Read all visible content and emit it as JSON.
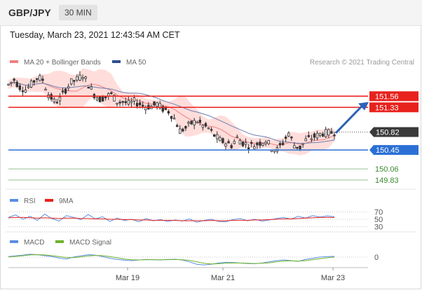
{
  "header": {
    "symbol": "GBP/JPY",
    "timeframe": "30 MIN"
  },
  "timestamp": "Tuesday, March 23, 2021 12:43:54 AM CET",
  "credit": "Research © 2021 Trading Central",
  "colors": {
    "resistance": "#e8221d",
    "support": "#2b6fd6",
    "target": "#3a8a2e",
    "price_badge": "#3a3a3a",
    "band_fill": "#ffd2cf",
    "ma20": "#f08080",
    "ma50": "#6d7fb0",
    "candle": "#333333",
    "arrow": "#2d63b5",
    "rsi": "#5b8de6",
    "rsi_ma": "#e8221d",
    "macd": "#5b8de6",
    "macd_signal": "#6fb42b"
  },
  "chart_data": [
    {
      "type": "candlestick",
      "legend": [
        {
          "name": "MA 20 + Bollinger Bands",
          "color": "#f08080"
        },
        {
          "name": "MA 50",
          "color": "#2d4f8f"
        }
      ],
      "x_ticks": [
        "Mar 19",
        "Mar 21",
        "Mar 23"
      ],
      "ylim": [
        149.7,
        152.1
      ],
      "close_path": [
        151.8,
        151.9,
        151.75,
        151.7,
        151.8,
        151.95,
        151.9,
        151.6,
        151.45,
        151.5,
        151.7,
        151.85,
        151.9,
        152.0,
        151.8,
        151.6,
        151.5,
        151.55,
        151.6,
        151.45,
        151.45,
        151.4,
        151.45,
        151.4,
        151.35,
        151.35,
        151.4,
        151.3,
        151.25,
        151.1,
        150.85,
        150.9,
        151.0,
        151.05,
        150.95,
        150.9,
        150.75,
        150.65,
        150.6,
        150.55,
        150.7,
        150.6,
        150.55,
        150.55,
        150.6,
        150.65,
        150.5,
        150.45,
        150.6,
        150.8,
        150.55,
        150.5,
        150.65,
        150.7,
        150.75,
        150.8,
        150.8,
        150.82
      ],
      "levels": {
        "current": {
          "value": 150.82,
          "label": "150.82"
        },
        "resistance": [
          {
            "value": 151.56,
            "label": "151.56"
          },
          {
            "value": 151.33,
            "label": "151.33"
          }
        ],
        "support": {
          "value": 150.45,
          "label": "150.45"
        },
        "targets": [
          {
            "value": 150.06,
            "label": "150.06"
          },
          {
            "value": 149.83,
            "label": "149.83"
          }
        ]
      }
    },
    {
      "type": "line",
      "legend": [
        {
          "name": "RSI",
          "color": "#5b8de6"
        },
        {
          "name": "9MA",
          "color": "#e8221d"
        }
      ],
      "ylim": [
        25,
        75
      ],
      "y_ticks": [
        {
          "value": 70,
          "label": "70"
        },
        {
          "value": 50,
          "label": "50"
        },
        {
          "value": 30,
          "label": "30"
        }
      ],
      "series": [
        {
          "name": "RSI",
          "values": [
            55,
            62,
            50,
            58,
            47,
            64,
            52,
            45,
            60,
            55,
            49,
            63,
            51,
            57,
            44,
            53,
            47,
            50,
            43,
            52,
            46,
            49,
            44,
            48,
            45,
            51,
            42,
            47,
            50,
            44,
            43,
            49,
            52,
            46,
            50,
            45,
            48,
            52,
            55,
            50,
            58,
            53,
            60,
            56,
            59,
            57
          ]
        },
        {
          "name": "9MA",
          "values": [
            54,
            55,
            55,
            54,
            53,
            54,
            53,
            52,
            53,
            53,
            52,
            52,
            51,
            51,
            50,
            50,
            49,
            49,
            48,
            48,
            47,
            47,
            47,
            47,
            46,
            46,
            46,
            46,
            47,
            46,
            46,
            47,
            47,
            47,
            48,
            48,
            49,
            50,
            51,
            51,
            52,
            53,
            54,
            55,
            55,
            55
          ]
        }
      ]
    },
    {
      "type": "line",
      "legend": [
        {
          "name": "MACD",
          "color": "#5b8de6"
        },
        {
          "name": "MACD Signal",
          "color": "#6fb42b"
        }
      ],
      "ylim": [
        -0.5,
        0.5
      ],
      "y_ticks": [
        {
          "value": 0,
          "label": "0"
        }
      ],
      "series": [
        {
          "name": "MACD",
          "values": [
            0.02,
            0.05,
            0.08,
            0.12,
            0.1,
            0.06,
            0.02,
            -0.04,
            -0.08,
            0.0,
            0.05,
            0.1,
            0.08,
            0.02,
            -0.05,
            -0.1,
            -0.13,
            -0.15,
            -0.12,
            -0.1,
            -0.11,
            -0.12,
            -0.1,
            -0.09,
            -0.12,
            -0.2,
            -0.3,
            -0.33,
            -0.3,
            -0.25,
            -0.22,
            -0.23,
            -0.25,
            -0.27,
            -0.28,
            -0.25,
            -0.2,
            -0.15,
            -0.12,
            -0.15,
            -0.18,
            -0.1,
            -0.05,
            0.0,
            0.02,
            0.03
          ]
        },
        {
          "name": "MACD Signal",
          "values": [
            0.01,
            0.03,
            0.06,
            0.09,
            0.1,
            0.09,
            0.06,
            0.02,
            -0.02,
            -0.02,
            0.01,
            0.05,
            0.07,
            0.06,
            0.02,
            -0.03,
            -0.08,
            -0.11,
            -0.12,
            -0.11,
            -0.11,
            -0.11,
            -0.11,
            -0.1,
            -0.11,
            -0.14,
            -0.2,
            -0.26,
            -0.29,
            -0.28,
            -0.26,
            -0.25,
            -0.25,
            -0.26,
            -0.27,
            -0.26,
            -0.24,
            -0.2,
            -0.17,
            -0.16,
            -0.17,
            -0.15,
            -0.11,
            -0.07,
            -0.03,
            0.0
          ]
        }
      ]
    }
  ]
}
